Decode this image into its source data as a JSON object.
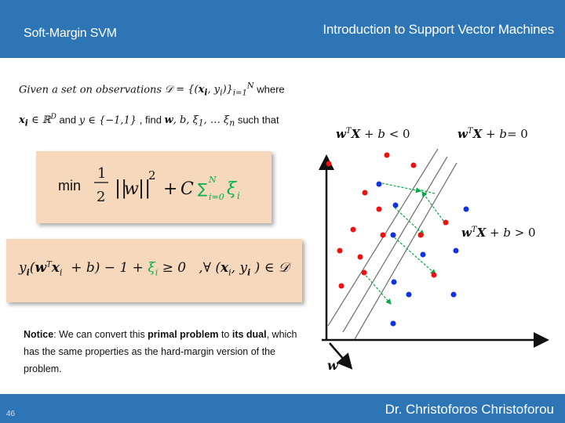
{
  "header": {
    "left_title": "Soft-Margin SVM",
    "right_title": "Introduction to Support Vector Machines"
  },
  "footer": {
    "page_number": "46",
    "author": "Dr. Christoforos Christoforou"
  },
  "intro": {
    "line1_prefix": "Given a set on observations 𝒟 = {(x",
    "line1_text": "Given a set on observations",
    "line1_where": "where",
    "line2_text": "and y ∈ {−1,1} , find w, b, ξ",
    "line2_suffix": "such that"
  },
  "objective": {
    "min_label": "min",
    "formula_note": "1/2 ||w||^2 + C Σ_{i=0}^{N} ξ_i"
  },
  "constraint": {
    "formula_note": "y_i(w^T x_i + b) − 1 + ξ_i ≥ 0 , ∀ (x_i, y_i) ∈ 𝒟"
  },
  "notice": {
    "lead": "Notice",
    "t1": ": We can convert this ",
    "b1": "primal problem",
    "t2": " to ",
    "b2": "its dual",
    "t3": ", which has the same properties as the hard-margin version of the problem."
  },
  "diagram": {
    "label_negative": "wᵀX + b < 0",
    "label_boundary": "wᵀX + b= 0",
    "label_positive": "wᵀX + b > 0",
    "w_label": "w",
    "colors": {
      "red_class": "#ee1111",
      "blue_class": "#1133dd",
      "margin_lines": "#777777",
      "slack_arrows": "#00aa44"
    }
  }
}
